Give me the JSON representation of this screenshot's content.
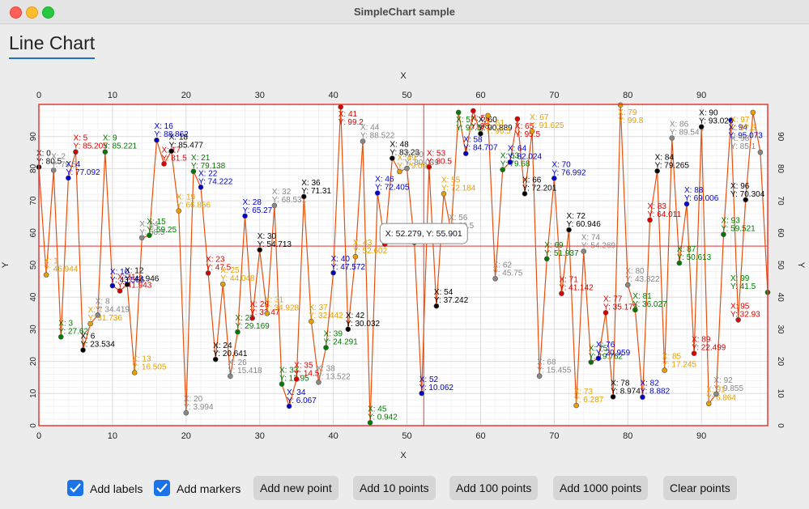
{
  "window": {
    "title": "SimpleChart sample"
  },
  "tab": {
    "label": "Line Chart"
  },
  "controls": {
    "labels_checkbox": {
      "label": "Add labels",
      "checked": true
    },
    "markers_checkbox": {
      "label": "Add markers",
      "checked": true
    },
    "buttons": [
      "Add new point",
      "Add 10 points",
      "Add 100 points",
      "Add 1000 points",
      "Clear points"
    ]
  },
  "tooltip": {
    "text": "X: 52.279, Y: 55.901"
  },
  "colors": {
    "line": "#e8500e",
    "crosshair": "#e53935",
    "frame": "#e53935",
    "accent": "#1a73e8",
    "label_cycle": [
      "#000000",
      "#e6a000",
      "#888888",
      "#007a00",
      "#0000cc",
      "#dd0000"
    ]
  },
  "chart_data": {
    "type": "line",
    "xlabel": "X",
    "ylabel": "Y",
    "xlim": [
      0,
      99
    ],
    "ylim": [
      0,
      100
    ],
    "grid": true,
    "crosshair": {
      "x": 52.279,
      "y": 55.901
    },
    "points": [
      {
        "x": 0,
        "y": 80.5
      },
      {
        "x": 1,
        "y": 46.944
      },
      {
        "x": 2,
        "y": 79.5
      },
      {
        "x": 3,
        "y": 27.62
      },
      {
        "x": 4,
        "y": 77.092
      },
      {
        "x": 5,
        "y": 85.205
      },
      {
        "x": 6,
        "y": 23.534
      },
      {
        "x": 7,
        "y": 31.736
      },
      {
        "x": 8,
        "y": 34.419
      },
      {
        "x": 9,
        "y": 85.221
      },
      {
        "x": 10,
        "y": 43.566
      },
      {
        "x": 11,
        "y": 41.943
      },
      {
        "x": 12,
        "y": 43.946
      },
      {
        "x": 13,
        "y": 16.505
      },
      {
        "x": 14,
        "y": 58.5
      },
      {
        "x": 15,
        "y": 59.25
      },
      {
        "x": 16,
        "y": 88.862
      },
      {
        "x": 17,
        "y": 81.5
      },
      {
        "x": 18,
        "y": 85.477
      },
      {
        "x": 19,
        "y": 66.856
      },
      {
        "x": 20,
        "y": 3.994
      },
      {
        "x": 21,
        "y": 79.138
      },
      {
        "x": 22,
        "y": 74.222
      },
      {
        "x": 23,
        "y": 47.5
      },
      {
        "x": 24,
        "y": 20.641
      },
      {
        "x": 25,
        "y": 44.048
      },
      {
        "x": 26,
        "y": 15.418
      },
      {
        "x": 27,
        "y": 29.169
      },
      {
        "x": 28,
        "y": 65.27
      },
      {
        "x": 29,
        "y": 33.47
      },
      {
        "x": 30,
        "y": 54.713
      },
      {
        "x": 31,
        "y": 34.928
      },
      {
        "x": 32,
        "y": 68.531
      },
      {
        "x": 33,
        "y": 12.95
      },
      {
        "x": 34,
        "y": 6.067
      },
      {
        "x": 35,
        "y": 14.5
      },
      {
        "x": 36,
        "y": 71.31
      },
      {
        "x": 37,
        "y": 32.442
      },
      {
        "x": 38,
        "y": 13.522
      },
      {
        "x": 39,
        "y": 24.291
      },
      {
        "x": 40,
        "y": 47.572
      },
      {
        "x": 41,
        "y": 99.2
      },
      {
        "x": 42,
        "y": 30.032
      },
      {
        "x": 43,
        "y": 52.602
      },
      {
        "x": 44,
        "y": 88.522
      },
      {
        "x": 45,
        "y": 0.942
      },
      {
        "x": 46,
        "y": 72.405
      },
      {
        "x": 47,
        "y": 56.5
      },
      {
        "x": 48,
        "y": 83.23
      },
      {
        "x": 49,
        "y": 79.094
      },
      {
        "x": 50,
        "y": 80.089
      },
      {
        "x": 51,
        "y": 57
      },
      {
        "x": 52,
        "y": 10.062
      },
      {
        "x": 53,
        "y": 80.5
      },
      {
        "x": 54,
        "y": 37.242
      },
      {
        "x": 55,
        "y": 72.184
      },
      {
        "x": 56,
        "y": 60.5
      },
      {
        "x": 57,
        "y": 97.5
      },
      {
        "x": 58,
        "y": 84.707
      },
      {
        "x": 59,
        "y": 98
      },
      {
        "x": 60,
        "y": 90.889
      },
      {
        "x": 61,
        "y": 96.5
      },
      {
        "x": 62,
        "y": 45.75
      },
      {
        "x": 63,
        "y": 79.68
      },
      {
        "x": 64,
        "y": 82.024
      },
      {
        "x": 65,
        "y": 95.5
      },
      {
        "x": 66,
        "y": 72.201
      },
      {
        "x": 67,
        "y": 91.625
      },
      {
        "x": 68,
        "y": 15.455
      },
      {
        "x": 69,
        "y": 51.937
      },
      {
        "x": 70,
        "y": 76.992
      },
      {
        "x": 71,
        "y": 41.142
      },
      {
        "x": 72,
        "y": 60.946
      },
      {
        "x": 73,
        "y": 6.287
      },
      {
        "x": 74,
        "y": 54.269
      },
      {
        "x": 75,
        "y": 19.762
      },
      {
        "x": 76,
        "y": 20.959
      },
      {
        "x": 77,
        "y": 35.173
      },
      {
        "x": 78,
        "y": 8.974
      },
      {
        "x": 79,
        "y": 99.8
      },
      {
        "x": 80,
        "y": 43.822
      },
      {
        "x": 81,
        "y": 36.027
      },
      {
        "x": 82,
        "y": 8.882
      },
      {
        "x": 83,
        "y": 64.011
      },
      {
        "x": 84,
        "y": 79.265
      },
      {
        "x": 85,
        "y": 17.245
      },
      {
        "x": 86,
        "y": 89.547
      },
      {
        "x": 87,
        "y": 50.613
      },
      {
        "x": 88,
        "y": 69.006
      },
      {
        "x": 89,
        "y": 22.499
      },
      {
        "x": 90,
        "y": 93.028
      },
      {
        "x": 91,
        "y": 6.864
      },
      {
        "x": 92,
        "y": 9.855
      },
      {
        "x": 93,
        "y": 59.521
      },
      {
        "x": 94,
        "y": 95.073
      },
      {
        "x": 95,
        "y": 32.93
      },
      {
        "x": 96,
        "y": 70.304
      },
      {
        "x": 97,
        "y": 97.5
      },
      {
        "x": 98,
        "y": 85.1
      },
      {
        "x": 99,
        "y": 41.5
      }
    ]
  }
}
